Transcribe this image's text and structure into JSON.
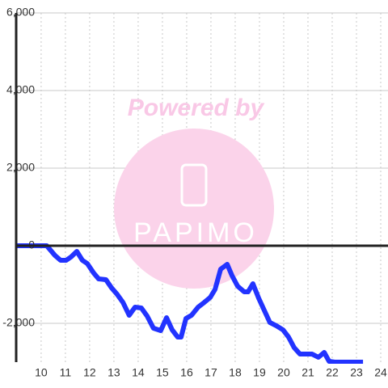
{
  "chart_data": {
    "type": "line",
    "watermark": "Powered by",
    "watermark_logo": "PAPIMO",
    "xlim": [
      8.97,
      24.3
    ],
    "xticks": [
      10,
      11,
      12,
      13,
      14,
      15,
      16,
      17,
      18,
      19,
      20,
      21,
      22,
      23,
      24
    ],
    "ylim": [
      -3000,
      6000
    ],
    "yticks": [
      {
        "value": -2000,
        "label": "-2,000"
      },
      0,
      {
        "value": 2000,
        "label": "2,000"
      },
      {
        "value": 4000,
        "label": "4,000"
      },
      {
        "value": 6000,
        "label": "6,000"
      }
    ],
    "grid": true,
    "series": [
      {
        "color": "#2233ff",
        "x": [
          8.97,
          10.23,
          10.57,
          10.8,
          11.03,
          11.23,
          11.47,
          11.7,
          11.9,
          12.17,
          12.37,
          12.67,
          12.9,
          13.13,
          13.37,
          13.63,
          13.87,
          14.13,
          14.37,
          14.63,
          14.93,
          15.17,
          15.4,
          15.63,
          15.77,
          15.97,
          16.2,
          16.47,
          16.73,
          16.97,
          17.17,
          17.4,
          17.67,
          17.87,
          18.1,
          18.37,
          18.53,
          18.73,
          18.97,
          19.2,
          19.43,
          19.7,
          19.97,
          20.2,
          20.43,
          20.67,
          20.9,
          21.17,
          21.43,
          21.67,
          21.87,
          22.1,
          23.27
        ],
        "values": [
          0,
          0,
          -250,
          -375,
          -375,
          -290,
          -146,
          -375,
          -458,
          -708,
          -854,
          -875,
          -1083,
          -1250,
          -1458,
          -1792,
          -1583,
          -1604,
          -1813,
          -2125,
          -2188,
          -1854,
          -2167,
          -2354,
          -2354,
          -1875,
          -1792,
          -1583,
          -1458,
          -1333,
          -1125,
          -604,
          -479,
          -771,
          -1042,
          -1188,
          -1188,
          -979,
          -1354,
          -1667,
          -1979,
          -2063,
          -2167,
          -2354,
          -2625,
          -2792,
          -2792,
          -2792,
          -2875,
          -2750,
          -2979,
          -3000,
          -3000
        ]
      }
    ]
  }
}
